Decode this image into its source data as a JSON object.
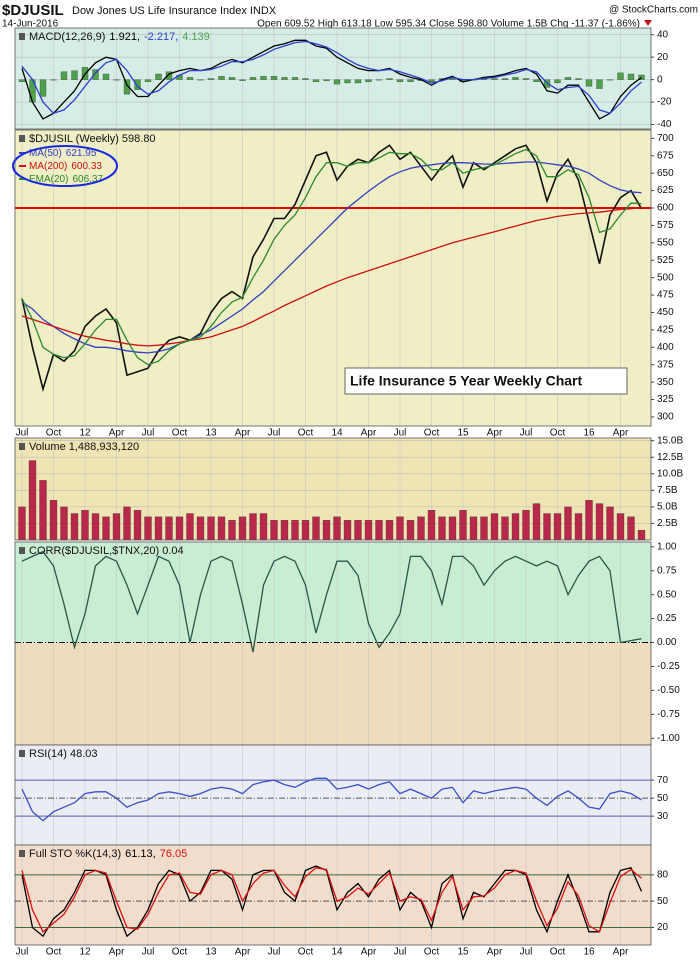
{
  "header": {
    "symbol": "$DJUSIL",
    "name": "Dow Jones US Life Insurance Index INDX",
    "source": "@ StockCharts.com",
    "date": "14-Jun-2016",
    "quote": "Open 609.52 High 613.18 Low 595.34 Close 598.80 Volume 1.5B Chg -11.37 (-1.86%)"
  },
  "chart_data": [
    {
      "type": "macd",
      "label": "MACD(12,26,9)",
      "background": "#d6ece6",
      "ylim": [
        -44,
        46
      ],
      "yticks": [
        40,
        20,
        0,
        -20,
        -40
      ],
      "grid": true,
      "series": [
        {
          "color": "#000000",
          "last_label": "1.921,",
          "values": [
            10,
            -20,
            -35,
            -30,
            -20,
            -10,
            5,
            15,
            20,
            18,
            -5,
            -15,
            -15,
            -5,
            5,
            8,
            10,
            8,
            10,
            15,
            18,
            15,
            20,
            25,
            30,
            32,
            35,
            35,
            30,
            28,
            20,
            15,
            10,
            8,
            8,
            10,
            5,
            2,
            0,
            -5,
            0,
            3,
            -2,
            0,
            2,
            3,
            5,
            8,
            10,
            5,
            -10,
            -12,
            -5,
            -5,
            -20,
            -35,
            -30,
            -15,
            -5,
            1.921
          ]
        },
        {
          "color": "#2a3fd0",
          "last_label": "-2.217,",
          "values": [
            12,
            0,
            -20,
            -30,
            -27,
            -18,
            -6,
            6,
            15,
            18,
            8,
            -6,
            -13,
            -10,
            -2,
            4,
            8,
            8,
            9,
            12,
            16,
            16,
            18,
            22,
            27,
            30,
            33,
            34,
            32,
            29,
            24,
            18,
            13,
            10,
            8,
            9,
            7,
            4,
            1,
            -3,
            -1,
            2,
            0,
            0,
            1,
            2,
            4,
            6,
            9,
            7,
            -3,
            -9,
            -7,
            -6,
            -14,
            -27,
            -30,
            -21,
            -10,
            -2.217
          ]
        },
        {
          "color": "#4fa04a",
          "kind": "histogram",
          "last_label": "4.139",
          "values": [
            -2,
            -20,
            -15,
            0,
            7,
            8,
            11,
            9,
            5,
            0,
            -13,
            -9,
            -2,
            5,
            7,
            4,
            2,
            0,
            1,
            3,
            2,
            -1,
            2,
            3,
            3,
            2,
            2,
            1,
            -2,
            -1,
            -4,
            -3,
            -3,
            -2,
            0,
            1,
            -2,
            -2,
            -1,
            -2,
            1,
            1,
            -2,
            0,
            1,
            1,
            1,
            2,
            1,
            -2,
            -7,
            -3,
            2,
            1,
            -6,
            -8,
            0,
            6,
            5,
            4.139
          ]
        }
      ]
    },
    {
      "type": "price",
      "label": "$DJUSIL (Weekly) 598.80",
      "background": "#f0eec4",
      "ylim": [
        287,
        712
      ],
      "yticks": [
        300,
        325,
        350,
        375,
        400,
        425,
        450,
        475,
        500,
        525,
        550,
        575,
        600,
        625,
        650,
        675,
        700
      ],
      "grid": false,
      "annotation": "Life Insurance 5 Year Weekly Chart",
      "hlines": [
        {
          "value": 600,
          "color": "#e00000",
          "width": 2
        }
      ],
      "categories": [
        "Jul",
        null,
        null,
        "Oct",
        null,
        null,
        "12",
        null,
        null,
        "Apr",
        null,
        null,
        "Jul",
        null,
        null,
        "Oct",
        null,
        null,
        "13",
        null,
        null,
        "Apr",
        null,
        null,
        "Jul",
        null,
        null,
        "Oct",
        null,
        null,
        "14",
        null,
        null,
        "Apr",
        null,
        null,
        "Jul",
        null,
        null,
        "Oct",
        null,
        null,
        "15",
        null,
        null,
        "Apr",
        null,
        null,
        "Jul",
        null,
        null,
        "Oct",
        null,
        null,
        "16",
        null,
        null,
        "Apr",
        null,
        null
      ],
      "series": [
        {
          "color": "#111111",
          "values": [
            470,
            400,
            340,
            390,
            380,
            395,
            430,
            445,
            455,
            435,
            360,
            365,
            370,
            395,
            410,
            415,
            410,
            420,
            450,
            470,
            480,
            470,
            530,
            555,
            585,
            585,
            605,
            640,
            675,
            680,
            640,
            660,
            670,
            665,
            680,
            690,
            670,
            680,
            660,
            640,
            660,
            675,
            630,
            665,
            655,
            665,
            675,
            685,
            690,
            665,
            610,
            650,
            670,
            640,
            580,
            520,
            590,
            615,
            625,
            598.8
          ]
        },
        {
          "name": "MA(50)",
          "color": "#3340c0",
          "last_label": "621.95",
          "values": [
            465,
            455,
            440,
            430,
            420,
            412,
            405,
            400,
            400,
            398,
            395,
            393,
            392,
            394,
            398,
            405,
            410,
            418,
            425,
            435,
            445,
            455,
            468,
            480,
            495,
            510,
            525,
            540,
            555,
            570,
            585,
            600,
            612,
            624,
            635,
            645,
            652,
            657,
            660,
            662,
            664,
            665,
            665,
            664,
            663,
            663,
            664,
            665,
            666,
            666,
            664,
            662,
            660,
            656,
            650,
            640,
            632,
            626,
            623,
            621.95
          ]
        },
        {
          "name": "MA(200)",
          "color": "#cc1111",
          "last_label": "600.33",
          "values": [
            445,
            440,
            435,
            430,
            425,
            420,
            416,
            413,
            410,
            408,
            405,
            403,
            402,
            403,
            405,
            407,
            410,
            412,
            415,
            420,
            425,
            430,
            437,
            445,
            452,
            460,
            467,
            474,
            481,
            488,
            494,
            500,
            505,
            510,
            515,
            520,
            525,
            530,
            535,
            540,
            545,
            550,
            554,
            558,
            562,
            566,
            570,
            574,
            578,
            582,
            585,
            588,
            590,
            592,
            593,
            594,
            596,
            598,
            599,
            600.33
          ]
        },
        {
          "name": "EMA(20)",
          "color": "#2b8a2b",
          "last_label": "606.37",
          "values": [
            470,
            440,
            400,
            390,
            385,
            388,
            405,
            425,
            440,
            440,
            410,
            385,
            375,
            380,
            395,
            405,
            410,
            415,
            430,
            450,
            465,
            472,
            500,
            525,
            555,
            575,
            590,
            615,
            645,
            665,
            665,
            660,
            665,
            665,
            672,
            680,
            678,
            678,
            670,
            655,
            655,
            665,
            650,
            655,
            658,
            662,
            670,
            678,
            684,
            675,
            645,
            645,
            655,
            648,
            615,
            565,
            570,
            590,
            607,
            606.37
          ]
        }
      ]
    },
    {
      "type": "volume",
      "label": "Volume 1,488,933,120",
      "background": "#efe4b4",
      "ylim": [
        0,
        15.4
      ],
      "yticks": [
        {
          "value": 2.5,
          "label": "2.5B"
        },
        {
          "value": 5,
          "label": "5.0B"
        },
        {
          "value": 7.5,
          "label": "7.5B"
        },
        {
          "value": 10,
          "label": "10.0B"
        },
        {
          "value": 12.5,
          "label": "12.5B"
        },
        {
          "value": 15,
          "label": "15.0B"
        }
      ],
      "grid": true,
      "series": [
        {
          "color": "#b8284a",
          "values": [
            5,
            12,
            9,
            6,
            5,
            4,
            4.5,
            4,
            3.5,
            4,
            5,
            4.5,
            3.5,
            3.5,
            3.5,
            3.5,
            4,
            3.5,
            3.5,
            3.5,
            3,
            3.5,
            4,
            4,
            3,
            3,
            3,
            3,
            3.5,
            3,
            3.5,
            3,
            3,
            3,
            3,
            3,
            3.5,
            3,
            3.5,
            4.5,
            3.5,
            3.5,
            4.5,
            3.5,
            3.5,
            4,
            3.5,
            4,
            4.5,
            5.5,
            4,
            4,
            5,
            4,
            6,
            5.5,
            5,
            4,
            3.5,
            1.49
          ]
        }
      ]
    },
    {
      "type": "corr",
      "label": "CORR($DJUSIL,$TNX,20) 0.04",
      "background": "#efdcbc",
      "upper_background": "#c9edd2",
      "ylim": [
        -1.07,
        1.05
      ],
      "yticks": [
        {
          "value": 1,
          "label": "1.00"
        },
        {
          "value": 0.75,
          "label": "0.75"
        },
        {
          "value": 0.5,
          "label": "0.50"
        },
        {
          "value": 0.25,
          "label": "0.25"
        },
        {
          "value": 0,
          "label": "0.00"
        },
        {
          "value": -0.25,
          "label": "-0.25"
        },
        {
          "value": -0.5,
          "label": "-0.50"
        },
        {
          "value": -0.75,
          "label": "-0.75"
        },
        {
          "value": -1,
          "label": "-1.00"
        }
      ],
      "grid": false,
      "hlines": [
        {
          "value": 0,
          "color": "#000000",
          "width": 1,
          "dash": "6 2 1 2"
        }
      ],
      "series": [
        {
          "color": "#2a5648",
          "values": [
            0.85,
            0.9,
            0.95,
            0.8,
            0.4,
            -0.05,
            0.3,
            0.8,
            0.9,
            0.85,
            0.6,
            0.3,
            0.6,
            0.9,
            0.85,
            0.6,
            0,
            0.5,
            0.85,
            0.9,
            0.85,
            0.4,
            -0.1,
            0.6,
            0.85,
            0.9,
            0.85,
            0.6,
            0.1,
            0.5,
            0.85,
            0.85,
            0.7,
            0.2,
            -0.05,
            0.1,
            0.3,
            0.9,
            0.9,
            0.75,
            0.4,
            0.9,
            0.9,
            0.8,
            0.6,
            0.75,
            0.85,
            0.9,
            0.85,
            0.8,
            0.85,
            0.8,
            0.5,
            0.7,
            0.85,
            0.9,
            0.75,
            0,
            0.02,
            0.04
          ]
        }
      ]
    },
    {
      "type": "line",
      "label": "RSI(14) 48.03",
      "background": "#eaeef4",
      "ylim": [
        -2,
        109
      ],
      "yticks": [
        30,
        50,
        70
      ],
      "grid": false,
      "hlines": [
        {
          "value": 70,
          "color": "#5a5aa8",
          "width": 1
        },
        {
          "value": 30,
          "color": "#5a5aa8",
          "width": 1
        },
        {
          "value": 50,
          "color": "#555555",
          "width": 1,
          "dash": "6 2 1 2"
        }
      ],
      "series": [
        {
          "color": "#3a4fc8",
          "values": [
            60,
            35,
            25,
            35,
            40,
            45,
            55,
            57,
            57,
            50,
            40,
            45,
            48,
            55,
            57,
            55,
            52,
            55,
            60,
            62,
            60,
            55,
            65,
            68,
            70,
            65,
            62,
            68,
            72,
            72,
            60,
            62,
            65,
            60,
            65,
            68,
            55,
            60,
            55,
            50,
            60,
            62,
            45,
            58,
            55,
            58,
            60,
            62,
            60,
            50,
            42,
            52,
            58,
            50,
            40,
            38,
            55,
            58,
            55,
            48.03
          ]
        }
      ]
    },
    {
      "type": "line",
      "label": "Full STO %K(14,3)",
      "background": "#f2dccc",
      "ylim": [
        0,
        114
      ],
      "yticks": [
        20,
        50,
        80
      ],
      "grid": false,
      "hlines": [
        {
          "value": 80,
          "color": "#3a6a3a",
          "width": 1
        },
        {
          "value": 20,
          "color": "#3a6a3a",
          "width": 1
        },
        {
          "value": 50,
          "color": "#555555",
          "width": 1,
          "dash": "6 2 1 2"
        }
      ],
      "categories": [
        "Jul",
        null,
        null,
        "Oct",
        null,
        null,
        "12",
        null,
        null,
        "Apr",
        null,
        null,
        "Jul",
        null,
        null,
        "Oct",
        null,
        null,
        "13",
        null,
        null,
        "Apr",
        null,
        null,
        "Jul",
        null,
        null,
        "Oct",
        null,
        null,
        "14",
        null,
        null,
        "Apr",
        null,
        null,
        "Jul",
        null,
        null,
        "Oct",
        null,
        null,
        "15",
        null,
        null,
        "Apr",
        null,
        null,
        "Jul",
        null,
        null,
        "Oct",
        null,
        null,
        "16",
        null,
        null,
        "Apr",
        null,
        null
      ],
      "series": [
        {
          "color": "#000000",
          "last_label": "61.13,",
          "values": [
            80,
            20,
            10,
            30,
            40,
            60,
            85,
            85,
            80,
            40,
            10,
            20,
            40,
            70,
            85,
            80,
            50,
            60,
            85,
            85,
            75,
            40,
            80,
            85,
            85,
            60,
            50,
            85,
            90,
            85,
            40,
            60,
            70,
            55,
            75,
            85,
            40,
            60,
            50,
            20,
            70,
            80,
            30,
            60,
            55,
            70,
            85,
            85,
            80,
            40,
            15,
            50,
            80,
            50,
            15,
            15,
            60,
            85,
            88,
            61.13
          ]
        },
        {
          "color": "#dd1111",
          "last_label": "76.05",
          "values": [
            85,
            40,
            15,
            25,
            35,
            55,
            80,
            85,
            82,
            50,
            20,
            18,
            35,
            60,
            80,
            82,
            60,
            58,
            80,
            85,
            80,
            50,
            70,
            82,
            85,
            68,
            55,
            78,
            88,
            86,
            50,
            55,
            65,
            58,
            70,
            82,
            50,
            55,
            52,
            28,
            60,
            78,
            40,
            55,
            56,
            65,
            80,
            85,
            82,
            50,
            22,
            42,
            72,
            56,
            22,
            15,
            48,
            78,
            86,
            76.05
          ]
        }
      ]
    }
  ]
}
